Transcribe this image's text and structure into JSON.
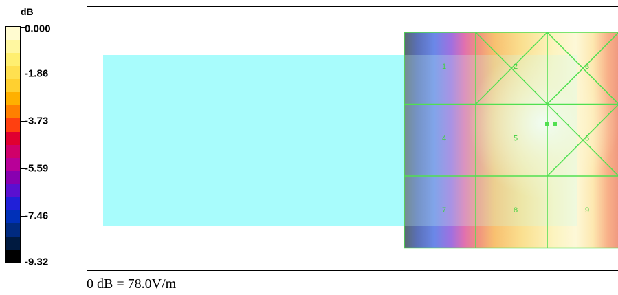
{
  "chart_data": {
    "type": "heatmap",
    "legend": {
      "unit": "dB",
      "tick_labels": [
        "0.000",
        "-1.86",
        "-3.73",
        "-5.59",
        "-7.46",
        "-9.32"
      ],
      "range": [
        -9.32,
        0.0
      ],
      "colors": [
        "#fffbd0",
        "#fff7a0",
        "#ffef70",
        "#ffe050",
        "#ffd030",
        "#ffb000",
        "#ff8000",
        "#ff4010",
        "#e00030",
        "#d0006a",
        "#b80098",
        "#8800b0",
        "#5a10d0",
        "#2020d8",
        "#0030b8",
        "#002a80",
        "#001a40",
        "#000000"
      ]
    },
    "grid_labels": [
      "1",
      "2",
      "3",
      "4",
      "5",
      "6",
      "7",
      "8",
      "9"
    ],
    "reference_label": "0 dB = 78.0V/m"
  }
}
